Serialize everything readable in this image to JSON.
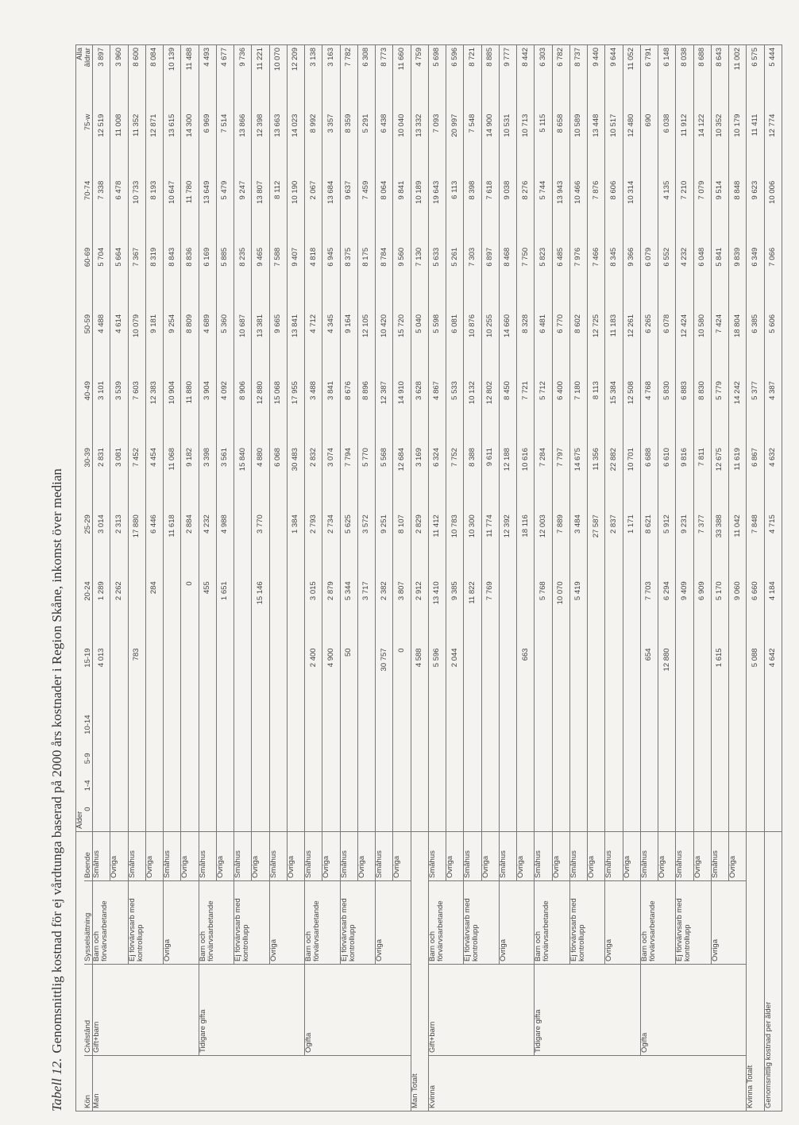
{
  "title": {
    "label": "Tabell 12.",
    "text": "Genomsnittlig kostnad för ej vårdtunga baserad på 2000 års kostnader i Region Skåne, inkomst över median"
  },
  "table": {
    "group_header": "Ålder",
    "all_header": "Alla",
    "columns": [
      "Kön",
      "Civilstånd",
      "Sysselsättning",
      "Boende",
      "0",
      "1-4",
      "5-9",
      "10-14",
      "15-19",
      "20-24",
      "25-29",
      "30-39",
      "40-49",
      "50-59",
      "60-69",
      "70-74",
      "75-w",
      "åldrar"
    ],
    "rows": [
      {
        "kon": "Man",
        "civil": "Gift+barn",
        "syss": "Barn och förvärvsarbetande",
        "boende": "Småhus",
        "cells": [
          null,
          null,
          null,
          null,
          "4 013",
          "1 289",
          "3 014",
          "2 831",
          "3 101",
          "4 488",
          "5 704",
          "7 338",
          "12 519",
          "3 897"
        ]
      },
      {
        "boende": "Övriga",
        "cells": [
          null,
          null,
          null,
          null,
          null,
          "2 262",
          "2 313",
          "3 081",
          "3 539",
          "4 614",
          "5 664",
          "6 478",
          "11 008",
          "3 960"
        ]
      },
      {
        "syss": "Ej förvärvsarb med kontrollupp",
        "boende": "Småhus",
        "cells": [
          null,
          null,
          null,
          null,
          "783",
          null,
          "17 880",
          "7 452",
          "7 603",
          "10 079",
          "7 367",
          "10 733",
          "11 352",
          "8 600"
        ]
      },
      {
        "boende": "Övriga",
        "cells": [
          null,
          null,
          null,
          null,
          null,
          "284",
          "6 446",
          "4 454",
          "12 383",
          "9 181",
          "8 319",
          "8 193",
          "12 871",
          "8 084"
        ]
      },
      {
        "syss": "Övriga",
        "boende": "Småhus",
        "cells": [
          null,
          null,
          null,
          null,
          null,
          null,
          "11 618",
          "11 068",
          "10 904",
          "9 254",
          "8 843",
          "10 647",
          "13 615",
          "10 139"
        ]
      },
      {
        "boende": "Övriga",
        "cells": [
          null,
          null,
          null,
          null,
          null,
          "0",
          "2 884",
          "9 182",
          "11 880",
          "8 809",
          "8 836",
          "11 780",
          "14 300",
          "11 488"
        ]
      },
      {
        "civil": "Tidigare gifta",
        "syss": "Barn och förvärvsarbetande",
        "boende": "Småhus",
        "cells": [
          null,
          null,
          null,
          null,
          null,
          "455",
          "4 232",
          "3 398",
          "3 904",
          "4 689",
          "6 169",
          "13 649",
          "6 969",
          "4 493"
        ]
      },
      {
        "boende": "Övriga",
        "cells": [
          null,
          null,
          null,
          null,
          null,
          "1 651",
          "4 988",
          "3 561",
          "4 092",
          "5 360",
          "5 885",
          "5 479",
          "7 514",
          "4 677"
        ]
      },
      {
        "syss": "Ej förvärvsarb med kontrollupp",
        "boende": "Småhus",
        "cells": [
          null,
          null,
          null,
          null,
          null,
          null,
          null,
          "15 840",
          "8 906",
          "10 687",
          "8 235",
          "9 247",
          "13 866",
          "9 736"
        ]
      },
      {
        "boende": "Övriga",
        "cells": [
          null,
          null,
          null,
          null,
          null,
          "15 146",
          "3 770",
          "4 880",
          "12 880",
          "13 381",
          "9 465",
          "13 807",
          "12 398",
          "11 221"
        ]
      },
      {
        "syss": "Övriga",
        "boende": "Småhus",
        "cells": [
          null,
          null,
          null,
          null,
          null,
          null,
          null,
          "6 068",
          "15 068",
          "9 665",
          "7 588",
          "8 112",
          "13 663",
          "10 070"
        ]
      },
      {
        "boende": "Övriga",
        "cells": [
          null,
          null,
          null,
          null,
          null,
          null,
          "1 384",
          "30 483",
          "17 955",
          "13 841",
          "9 407",
          "10 190",
          "14 023",
          "12 209"
        ]
      },
      {
        "civil": "Ogifta",
        "syss": "Barn och förvärvsarbetande",
        "boende": "Småhus",
        "cells": [
          null,
          null,
          null,
          null,
          "2 400",
          "3 015",
          "2 793",
          "2 832",
          "3 488",
          "4 712",
          "4 818",
          "2 067",
          "8 992",
          "3 138"
        ]
      },
      {
        "boende": "Övriga",
        "cells": [
          null,
          null,
          null,
          null,
          "4 900",
          "2 879",
          "2 734",
          "3 074",
          "3 841",
          "4 345",
          "6 945",
          "13 684",
          "3 357",
          "3 163"
        ]
      },
      {
        "syss": "Ej förvärvsarb med kontrollupp",
        "boende": "Småhus",
        "cells": [
          null,
          null,
          null,
          null,
          "50",
          "5 344",
          "5 625",
          "7 794",
          "8 676",
          "9 164",
          "8 375",
          "9 637",
          "8 359",
          "7 782"
        ]
      },
      {
        "boende": "Övriga",
        "cells": [
          null,
          null,
          null,
          null,
          null,
          "3 717",
          "3 572",
          "5 770",
          "8 896",
          "12 105",
          "8 175",
          "7 459",
          "5 291",
          "6 308"
        ]
      },
      {
        "syss": "Övriga",
        "boende": "Småhus",
        "cells": [
          null,
          null,
          null,
          null,
          "30 757",
          "2 382",
          "9 251",
          "5 568",
          "12 387",
          "10 420",
          "8 784",
          "8 064",
          "6 438",
          "8 773"
        ]
      },
      {
        "boende": "Övriga",
        "cells": [
          null,
          null,
          null,
          null,
          "0",
          "3 807",
          "8 107",
          "12 684",
          "14 910",
          "15 720",
          "9 560",
          "9 841",
          "10 040",
          "11 660"
        ]
      },
      {
        "label": "Man Totalt",
        "cells": [
          null,
          null,
          null,
          null,
          "4 588",
          "2 912",
          "2 829",
          "3 169",
          "3 628",
          "5 040",
          "7 130",
          "10 189",
          "13 332",
          "4 759"
        ]
      },
      {
        "kon": "Kvinna",
        "civil": "Gift+barn",
        "syss": "Barn och förvärvsarbetande",
        "boende": "Småhus",
        "cells": [
          null,
          null,
          null,
          null,
          "5 596",
          "13 410",
          "11 412",
          "6 324",
          "4 867",
          "5 598",
          "5 633",
          "19 643",
          "7 093",
          "5 698"
        ]
      },
      {
        "boende": "Övriga",
        "cells": [
          null,
          null,
          null,
          null,
          "2 044",
          "9 385",
          "10 783",
          "7 752",
          "5 533",
          "6 081",
          "5 261",
          "6 113",
          "20 997",
          "6 596"
        ]
      },
      {
        "syss": "Ej förvärvsarb med kontrollupp",
        "boende": "Småhus",
        "cells": [
          null,
          null,
          null,
          null,
          null,
          "11 822",
          "10 300",
          "8 388",
          "10 132",
          "10 876",
          "7 303",
          "8 398",
          "7 548",
          "8 721"
        ]
      },
      {
        "boende": "Övriga",
        "cells": [
          null,
          null,
          null,
          null,
          null,
          "7 769",
          "11 774",
          "9 611",
          "12 802",
          "10 255",
          "6 897",
          "7 618",
          "14 900",
          "8 885"
        ]
      },
      {
        "syss": "Övriga",
        "boende": "Småhus",
        "cells": [
          null,
          null,
          null,
          null,
          null,
          null,
          "12 392",
          "12 188",
          "8 450",
          "14 660",
          "8 468",
          "9 038",
          "10 531",
          "9 777"
        ]
      },
      {
        "boende": "Övriga",
        "cells": [
          null,
          null,
          null,
          null,
          "663",
          null,
          "18 116",
          "10 616",
          "7 721",
          "8 328",
          "7 750",
          "8 276",
          "10 713",
          "8 442"
        ]
      },
      {
        "civil": "Tidigare gifta",
        "syss": "Barn och förvärvsarbetande",
        "boende": "Småhus",
        "cells": [
          null,
          null,
          null,
          null,
          null,
          "5 768",
          "12 003",
          "7 284",
          "5 712",
          "6 481",
          "5 823",
          "5 744",
          "5 115",
          "6 303"
        ]
      },
      {
        "boende": "Övriga",
        "cells": [
          null,
          null,
          null,
          null,
          null,
          "10 070",
          "7 889",
          "7 797",
          "6 400",
          "6 770",
          "6 485",
          "13 943",
          "8 658",
          "6 782"
        ]
      },
      {
        "syss": "Ej förvärvsarb med kontrollupp",
        "boende": "Småhus",
        "cells": [
          null,
          null,
          null,
          null,
          null,
          "5 419",
          "3 484",
          "14 675",
          "7 180",
          "8 602",
          "7 976",
          "10 466",
          "10 589",
          "8 737"
        ]
      },
      {
        "boende": "Övriga",
        "cells": [
          null,
          null,
          null,
          null,
          null,
          null,
          "27 587",
          "11 356",
          "8 113",
          "12 725",
          "7 466",
          "7 876",
          "13 448",
          "9 440"
        ]
      },
      {
        "syss": "Övriga",
        "boende": "Småhus",
        "cells": [
          null,
          null,
          null,
          null,
          null,
          null,
          "2 837",
          "22 882",
          "15 384",
          "11 183",
          "8 345",
          "8 606",
          "10 517",
          "9 644"
        ]
      },
      {
        "boende": "Övriga",
        "cells": [
          null,
          null,
          null,
          null,
          null,
          null,
          "1 171",
          "10 701",
          "12 508",
          "12 261",
          "9 366",
          "10 314",
          "12 480",
          "11 052"
        ]
      },
      {
        "civil": "Ogifta",
        "syss": "Barn och förvärvsarbetande",
        "boende": "Småhus",
        "cells": [
          null,
          null,
          null,
          null,
          "654",
          "7 703",
          "8 621",
          "6 688",
          "4 768",
          "6 265",
          "6 079",
          null,
          "690",
          "6 791"
        ]
      },
      {
        "boende": "Övriga",
        "cells": [
          null,
          null,
          null,
          null,
          "12 880",
          "6 294",
          "5 912",
          "6 610",
          "5 830",
          "6 078",
          "6 552",
          "4 135",
          "6 038",
          "6 148"
        ]
      },
      {
        "syss": "Ej förvärvsarb med kontrollupp",
        "boende": "Småhus",
        "cells": [
          null,
          null,
          null,
          null,
          null,
          "9 409",
          "9 231",
          "9 816",
          "6 883",
          "12 424",
          "4 232",
          "7 210",
          "11 912",
          "8 038"
        ]
      },
      {
        "boende": "Övriga",
        "cells": [
          null,
          null,
          null,
          null,
          null,
          "6 909",
          "7 377",
          "7 811",
          "8 830",
          "10 580",
          "6 048",
          "7 079",
          "14 122",
          "8 688"
        ]
      },
      {
        "syss": "Övriga",
        "boende": "Småhus",
        "cells": [
          null,
          null,
          null,
          null,
          "1 615",
          "5 170",
          "33 388",
          "12 675",
          "5 779",
          "7 424",
          "5 841",
          "9 514",
          "10 352",
          "8 643"
        ]
      },
      {
        "boende": "Övriga",
        "cells": [
          null,
          null,
          null,
          null,
          null,
          "9 060",
          "11 042",
          "11 619",
          "14 242",
          "18 804",
          "9 839",
          "8 848",
          "10 179",
          "11 002"
        ]
      },
      {
        "label": "Kvinna Totalt",
        "cells": [
          null,
          null,
          null,
          null,
          "5 088",
          "6 660",
          "7 848",
          "6 867",
          "5 377",
          "6 385",
          "6 349",
          "9 623",
          "11 411",
          "6 575"
        ]
      },
      {
        "label": "Genomsnittlig kostnad per ålder",
        "cells": [
          null,
          null,
          null,
          null,
          "4 642",
          "4 184",
          "4 715",
          "4 632",
          "4 387",
          "5 606",
          "7 066",
          "10 006",
          "12 774",
          "5 444"
        ]
      }
    ]
  }
}
